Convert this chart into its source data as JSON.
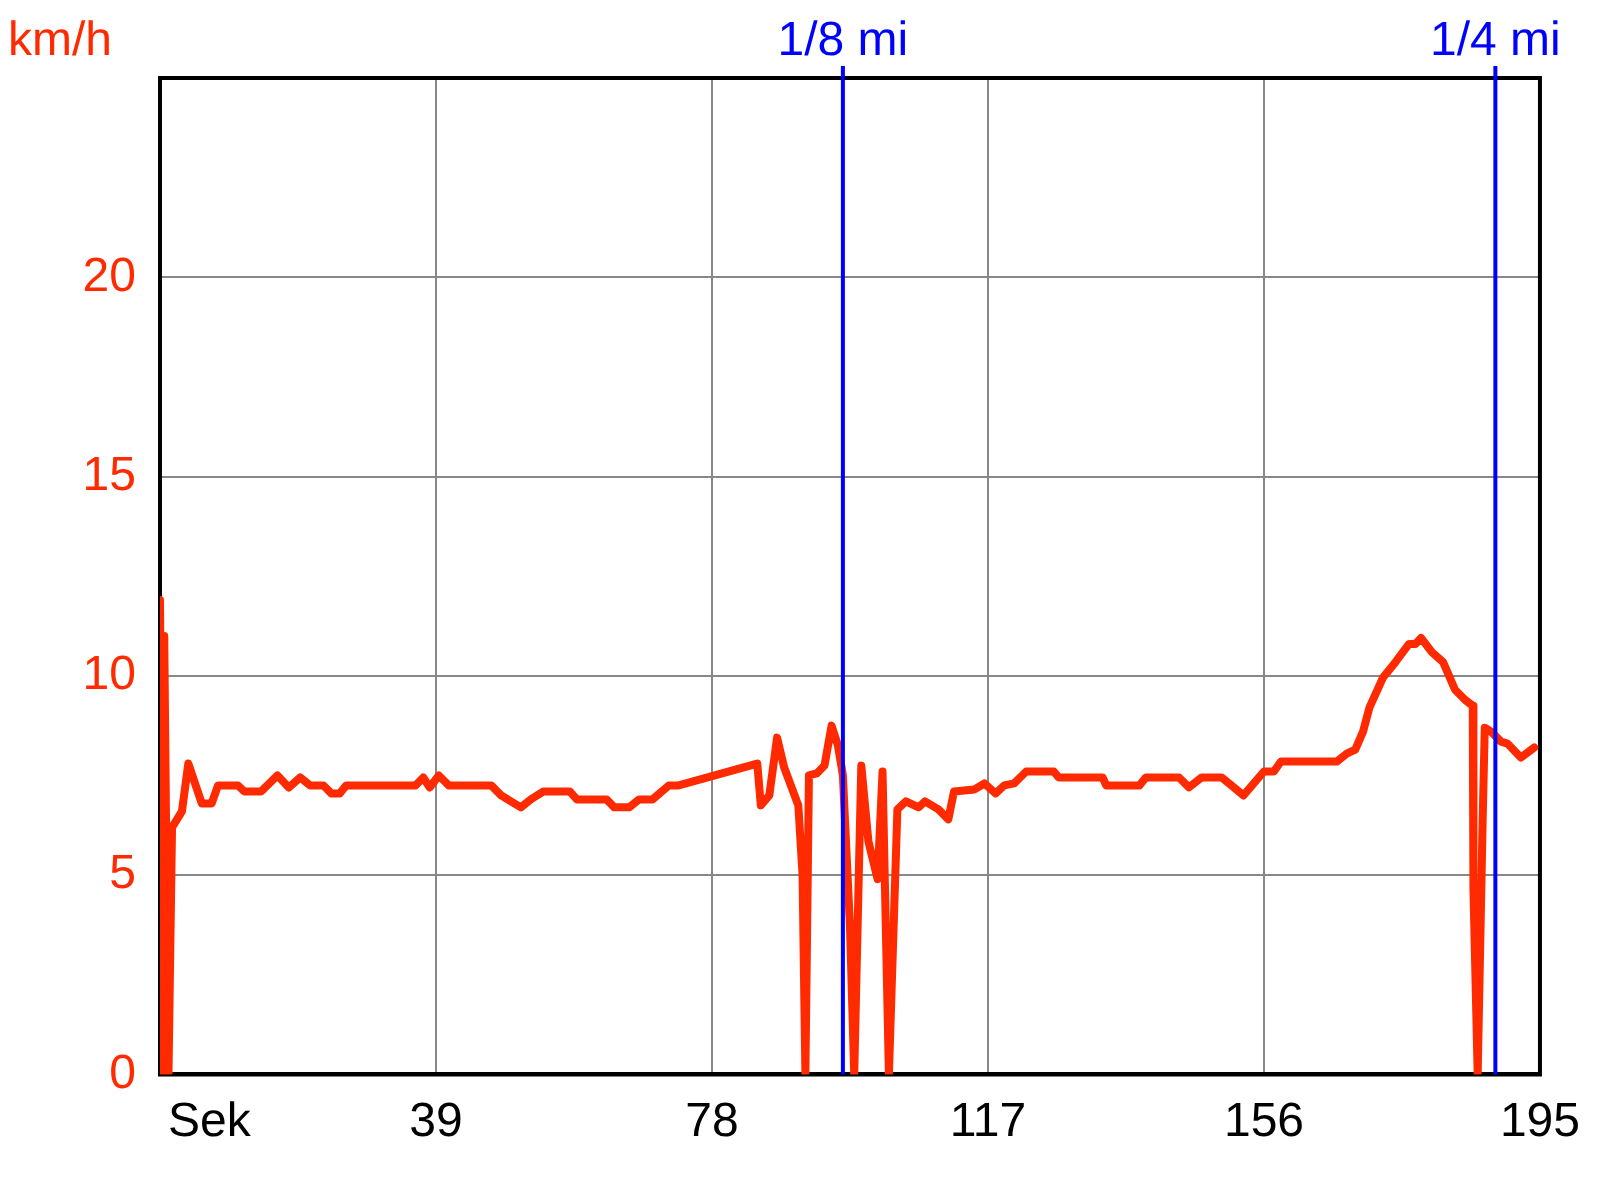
{
  "chart_data": {
    "type": "line",
    "xlabel": "Sek",
    "ylabel": "km/h",
    "xlim": [
      0,
      195
    ],
    "xticks": [
      39,
      78,
      117,
      156,
      195
    ],
    "ylim": [
      0,
      25
    ],
    "yticks": [
      0,
      5,
      10,
      15,
      20
    ],
    "grid": true,
    "legend": false,
    "marker": "none",
    "line_style": "solid",
    "series": [
      {
        "color": "#ff2a00",
        "x": [
          0,
          0.5,
          0.6,
          1.2,
          1.7,
          3.1,
          4.0,
          5.9,
          7.3,
          8.2,
          11.0,
          11.9,
          14.3,
          16.6,
          18.2,
          19.8,
          21.2,
          23.1,
          24.2,
          25.4,
          26.3,
          36.1,
          37.2,
          38.1,
          39.4,
          40.8,
          46.8,
          48.2,
          51.0,
          52.4,
          54.2,
          57.9,
          58.9,
          63.1,
          64.2,
          66.3,
          67.7,
          69.6,
          71.9,
          73.3,
          84.4,
          84.9,
          86.1,
          87.2,
          88.2,
          90.2,
          90.8,
          91.2,
          91.7,
          92.8,
          93.9,
          94.9,
          95.8,
          96.5,
          97.5,
          98.1,
          99.1,
          100.1,
          101.4,
          102.1,
          103.0,
          104.2,
          105.4,
          107.2,
          108.1,
          110.0,
          111.4,
          112.2,
          115.1,
          116.5,
          118.1,
          119.3,
          120.7,
          122.4,
          126.3,
          127.0,
          133.2,
          133.7,
          138.4,
          139.3,
          144.0,
          145.4,
          147.2,
          150.0,
          151.4,
          153.1,
          156.0,
          157.4,
          158.4,
          166.3,
          167.7,
          168.9,
          170.0,
          170.9,
          172.8,
          174.6,
          176.5,
          177.4,
          178.2,
          179.7,
          181.3,
          183.0,
          184.4,
          185.5,
          185.6,
          186.2,
          186.9,
          187.2,
          188.1,
          189.5,
          190.4,
          192.3,
          194.2
        ],
        "values": [
          11.9,
          0,
          11,
          0,
          6.2,
          6.6,
          7.8,
          6.8,
          6.8,
          7.25,
          7.25,
          7.1,
          7.1,
          7.5,
          7.2,
          7.45,
          7.25,
          7.25,
          7.05,
          7.05,
          7.25,
          7.25,
          7.45,
          7.2,
          7.5,
          7.25,
          7.25,
          7.0,
          6.7,
          6.9,
          7.1,
          7.1,
          6.9,
          6.9,
          6.7,
          6.7,
          6.9,
          6.9,
          7.25,
          7.25,
          7.8,
          6.75,
          7.0,
          8.45,
          7.7,
          6.75,
          5.0,
          0,
          7.5,
          7.55,
          7.75,
          8.75,
          8.25,
          7.5,
          3.7,
          0,
          7.75,
          5.85,
          4.9,
          7.6,
          0,
          6.65,
          6.85,
          6.7,
          6.85,
          6.65,
          6.4,
          7.1,
          7.15,
          7.3,
          7.05,
          7.25,
          7.3,
          7.6,
          7.6,
          7.45,
          7.45,
          7.25,
          7.25,
          7.45,
          7.45,
          7.2,
          7.45,
          7.45,
          7.25,
          7.0,
          7.6,
          7.6,
          7.85,
          7.85,
          8.05,
          8.15,
          8.6,
          9.2,
          9.95,
          10.35,
          10.8,
          10.8,
          10.95,
          10.6,
          10.35,
          9.65,
          9.4,
          9.25,
          4.65,
          0,
          6.35,
          8.7,
          8.6,
          8.35,
          8.3,
          7.95,
          8.2
        ]
      }
    ],
    "ref_lines": [
      {
        "axis": "x",
        "value": 96.5,
        "label": "1/8 mi",
        "color": "#0000ff"
      },
      {
        "axis": "x",
        "value": 188.7,
        "label": "1/4 mi",
        "color": "#0000ff"
      }
    ]
  }
}
